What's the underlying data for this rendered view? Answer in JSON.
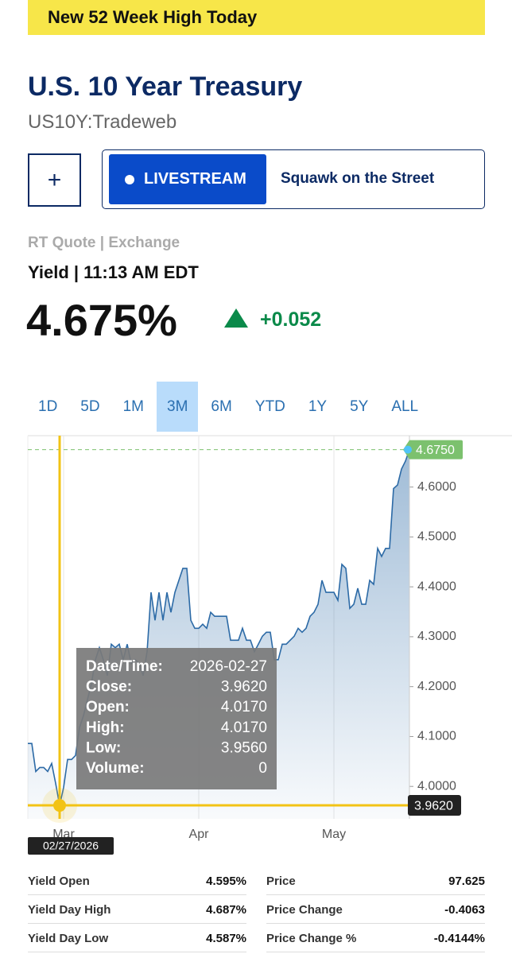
{
  "banner": "New 52 Week High Today",
  "header": {
    "title": "U.S. 10 Year Treasury",
    "symbol": "US10Y:Tradeweb"
  },
  "buttons": {
    "add": "+",
    "livestream": "LIVESTREAM",
    "show": "Squawk on the Street"
  },
  "quote": {
    "source": "RT Quote | Exchange",
    "time": "Yield | 11:13 AM EDT",
    "price": "4.675%",
    "change": "+0.052"
  },
  "ranges": [
    "1D",
    "5D",
    "1M",
    "3M",
    "6M",
    "YTD",
    "1Y",
    "5Y",
    "ALL"
  ],
  "selected_range": "3M",
  "chart_data": {
    "type": "line",
    "color": "#2c6aa6",
    "categories": [
      null,
      null,
      null,
      null,
      null,
      null,
      null,
      null,
      null,
      "Mar",
      null,
      null,
      null,
      null,
      null,
      null,
      null,
      null,
      null,
      null,
      null,
      null,
      null,
      null,
      null,
      null,
      null,
      null,
      null,
      null,
      null,
      null,
      null,
      null,
      null,
      null,
      null,
      null,
      null,
      null,
      null,
      null,
      null,
      "Apr",
      null,
      null,
      null,
      null,
      null,
      null,
      null,
      null,
      null,
      null,
      null,
      null,
      null,
      null,
      null,
      null,
      null,
      null,
      null,
      null,
      null,
      null,
      null,
      null,
      null,
      null,
      null,
      null,
      null,
      null,
      null,
      null,
      null,
      "May",
      null,
      null,
      null,
      null,
      null,
      null,
      null,
      null,
      null,
      null,
      null,
      null,
      null,
      null,
      null,
      null,
      null,
      null,
      null
    ],
    "values": [
      4.086,
      4.086,
      4.03,
      4.038,
      4.038,
      4.03,
      4.046,
      4.006,
      3.962,
      3.998,
      4.054,
      4.054,
      4.062,
      4.118,
      4.142,
      4.174,
      4.206,
      4.254,
      4.278,
      4.254,
      4.222,
      4.285,
      4.278,
      4.285,
      4.254,
      4.285,
      4.246,
      4.254,
      4.246,
      4.222,
      4.27,
      4.389,
      4.333,
      4.389,
      4.333,
      4.389,
      4.349,
      4.389,
      4.413,
      4.437,
      4.437,
      4.333,
      4.317,
      4.317,
      4.325,
      4.317,
      4.349,
      4.341,
      4.341,
      4.341,
      4.341,
      4.293,
      4.293,
      4.293,
      4.317,
      4.293,
      4.293,
      4.27,
      4.285,
      4.301,
      4.309,
      4.309,
      4.254,
      4.254,
      4.285,
      4.285,
      4.293,
      4.301,
      4.317,
      4.309,
      4.317,
      4.341,
      4.349,
      4.365,
      4.413,
      4.389,
      4.389,
      4.389,
      4.373,
      4.445,
      4.437,
      4.357,
      4.365,
      4.397,
      4.365,
      4.365,
      4.413,
      4.405,
      4.477,
      4.461,
      4.477,
      4.477,
      4.597,
      4.604,
      4.636,
      4.652,
      4.675
    ],
    "ylim": [
      3.935,
      4.703
    ],
    "yticks": [
      {
        "value": 4.0,
        "label": "4.0000"
      },
      {
        "value": 4.1,
        "label": "4.1000"
      },
      {
        "value": 4.2,
        "label": "4.2000"
      },
      {
        "value": 4.3,
        "label": "4.3000"
      },
      {
        "value": 4.4,
        "label": "4.4000"
      },
      {
        "value": 4.5,
        "label": "4.5000"
      },
      {
        "value": 4.6,
        "label": "4.6000"
      }
    ],
    "current": {
      "value": 4.675,
      "label": "4.6750",
      "color": "#7cc16e"
    },
    "crosshair": {
      "date": "02/27/2026",
      "value": 3.962,
      "label": "3.9620",
      "color": "#f2c315"
    }
  },
  "tooltip": {
    "rows": [
      [
        "Date/Time:",
        "2026-02-27"
      ],
      [
        "Close:",
        "3.9620"
      ],
      [
        "Open:",
        "4.0170"
      ],
      [
        "High:",
        "4.0170"
      ],
      [
        "Low:",
        "3.9560"
      ],
      [
        "Volume:",
        "0"
      ]
    ]
  },
  "stats": {
    "left": [
      [
        "Yield Open",
        "4.595%"
      ],
      [
        "Yield Day High",
        "4.687%"
      ],
      [
        "Yield Day Low",
        "4.587%"
      ]
    ],
    "right": [
      [
        "Price",
        "97.625"
      ],
      [
        "Price Change",
        "-0.4063"
      ],
      [
        "Price Change %",
        "-0.4144%"
      ]
    ]
  }
}
